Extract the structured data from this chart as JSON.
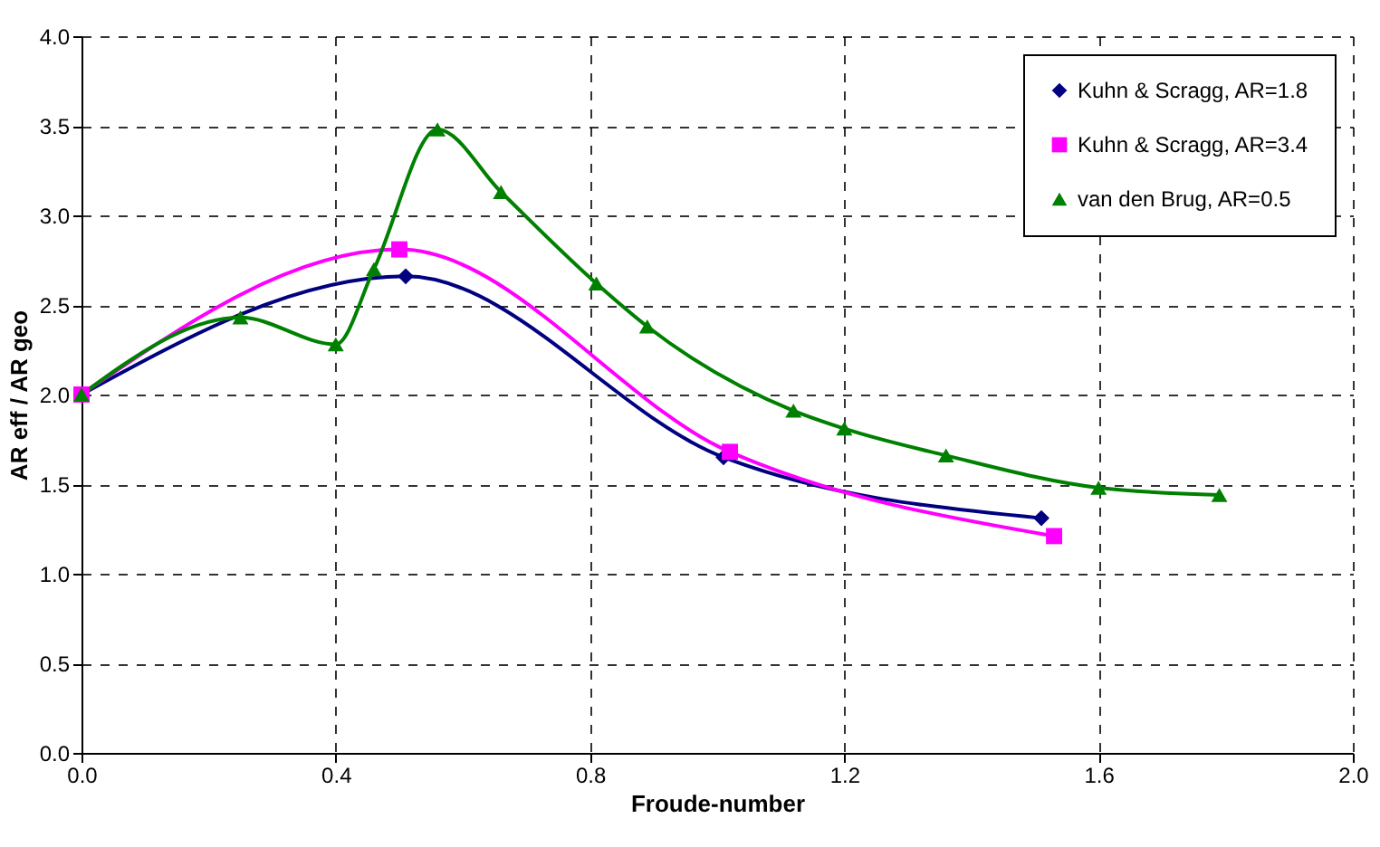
{
  "chart_data": {
    "type": "line",
    "xlabel": "Froude-number",
    "ylabel": "AR eff / AR geo",
    "xlim": [
      0,
      2.0
    ],
    "xticks": [
      {
        "value": 0,
        "label": "0.0"
      },
      0.4,
      0.8,
      1.2,
      1.6,
      {
        "value": 2,
        "label": "2.0"
      }
    ],
    "ylim": [
      0,
      4.0
    ],
    "yticks": [
      {
        "value": 0,
        "label": "0.0"
      },
      0.5,
      {
        "value": 1,
        "label": "1.0"
      },
      1.5,
      {
        "value": 2,
        "label": "2.0"
      },
      2.5,
      {
        "value": 3,
        "label": "3.0"
      },
      3.5,
      {
        "value": 4,
        "label": "4.0"
      }
    ],
    "grid": true,
    "legend": "top right",
    "line_style": "solid",
    "series": [
      {
        "name": "Kuhn & Scragg, AR=1.8",
        "color": "#000080",
        "marker": "diamond",
        "x": [
          0,
          0.51,
          1.01,
          1.51
        ],
        "values": [
          2.0,
          2.66,
          1.65,
          1.31
        ]
      },
      {
        "name": "Kuhn & Scragg, AR=3.4",
        "color": "#ff00ff",
        "marker": "square",
        "x": [
          0,
          0.5,
          1.02,
          1.53
        ],
        "values": [
          2.0,
          2.81,
          1.68,
          1.21
        ]
      },
      {
        "name": "van den Brug, AR=0.5",
        "color": "#008000",
        "marker": "triangle",
        "x": [
          0,
          0.25,
          0.4,
          0.46,
          0.56,
          0.66,
          0.81,
          0.89,
          1.12,
          1.2,
          1.36,
          1.6,
          1.79
        ],
        "values": [
          2.0,
          2.43,
          2.28,
          2.7,
          3.48,
          3.13,
          2.62,
          2.38,
          1.91,
          1.81,
          1.66,
          1.48,
          1.44
        ]
      }
    ]
  }
}
